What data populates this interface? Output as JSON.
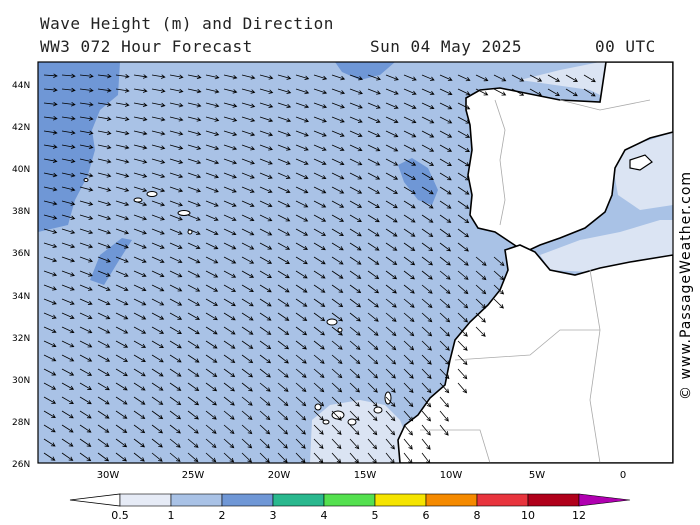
{
  "header": {
    "title_line1": "Wave Height (m) and Direction",
    "title_line2": "WW3 072 Hour Forecast",
    "date": "Sun 04 May 2025",
    "time": "00 UTC"
  },
  "map": {
    "latitude_labels": [
      "44N",
      "42N",
      "40N",
      "38N",
      "36N",
      "34N",
      "32N",
      "30N",
      "28N",
      "26N"
    ],
    "longitude_labels": [
      "30W",
      "25W",
      "20W",
      "15W",
      "10W",
      "5W",
      "0"
    ],
    "colors": {
      "sea_light": "#dbe4f3",
      "sea_medium": "#a9c2e6",
      "sea_dark": "#6f97d6",
      "land": "#ffffff",
      "coastline": "#000000"
    }
  },
  "legend": {
    "labels": [
      "0.5",
      "1",
      "2",
      "3",
      "4",
      "5",
      "6",
      "8",
      "10",
      "12"
    ],
    "colors": [
      "#e6ebf6",
      "#a9c2e6",
      "#6f97d6",
      "#2ab88e",
      "#54e04f",
      "#f5e400",
      "#f58a00",
      "#e8343d",
      "#b0001a",
      "#b000b0"
    ]
  },
  "credit": "© www.PassageWeather.com"
}
